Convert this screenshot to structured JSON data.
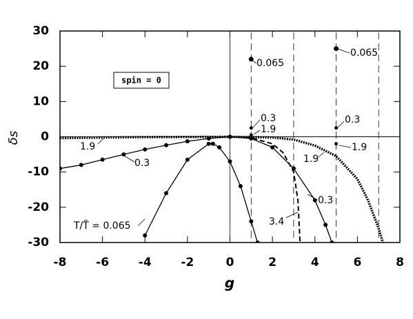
{
  "chart_data": {
    "type": "line",
    "x_label": "g",
    "y_label": "δs",
    "annotation": "spin = 0",
    "xlim": [
      -8,
      8
    ],
    "ylim": [
      -30,
      30
    ],
    "xticks": [
      -8,
      -6,
      -4,
      -2,
      0,
      2,
      4,
      6,
      8
    ],
    "yticks": [
      -30,
      -20,
      -10,
      0,
      10,
      20,
      30
    ],
    "vertical_lines": [
      1,
      3,
      5,
      7
    ],
    "series": [
      {
        "name": "T/T̃ = 0.065",
        "color": "#000000",
        "style": "solid",
        "marker": true,
        "x": [
          -4,
          -3,
          -2,
          -1,
          -0.8,
          -0.5,
          0,
          0.5,
          1,
          1.3
        ],
        "values": [
          -28,
          -16,
          -6.5,
          -2,
          -2,
          -3,
          -7,
          -14,
          -24,
          -30
        ]
      },
      {
        "name": "0.3",
        "color": "#000000",
        "style": "solid",
        "marker": true,
        "x": [
          -8,
          -7,
          -6,
          -5,
          -4,
          -3,
          -2,
          -1,
          0,
          1,
          2,
          3,
          4,
          4.5,
          4.8
        ],
        "values": [
          -9,
          -8,
          -6.5,
          -5,
          -3.6,
          -2.4,
          -1.3,
          -0.5,
          0,
          -0.5,
          -3,
          -9,
          -18,
          -25,
          -30
        ]
      },
      {
        "name": "1.9",
        "color": "#000000",
        "style": "dotted",
        "marker": false,
        "x": [
          -8,
          -6,
          -4,
          0,
          2,
          3,
          4,
          5,
          6,
          6.5,
          7,
          7.2
        ],
        "values": [
          -0.4,
          -0.2,
          -0.1,
          0,
          -0.2,
          -0.8,
          -2.5,
          -5.5,
          -12,
          -18,
          -26,
          -30
        ]
      },
      {
        "name": "3.4",
        "color": "#000000",
        "style": "dashed",
        "marker": false,
        "x": [
          0,
          1,
          2,
          2.5,
          3,
          3.2,
          3.3
        ],
        "values": [
          0,
          -0.3,
          -2,
          -4.5,
          -10,
          -18,
          -30
        ]
      }
    ],
    "points": [
      {
        "label": "0.065",
        "x": 1,
        "value": 22
      },
      {
        "label": "0.065",
        "x": 5,
        "value": 25
      },
      {
        "label": "0.3",
        "x": 1,
        "value": 2.5
      },
      {
        "label": "0.3",
        "x": 5,
        "value": 2.5
      },
      {
        "label": "1.9",
        "x": 1,
        "value": 0.5
      },
      {
        "label": "1.9",
        "x": 5,
        "value": -2
      }
    ]
  }
}
